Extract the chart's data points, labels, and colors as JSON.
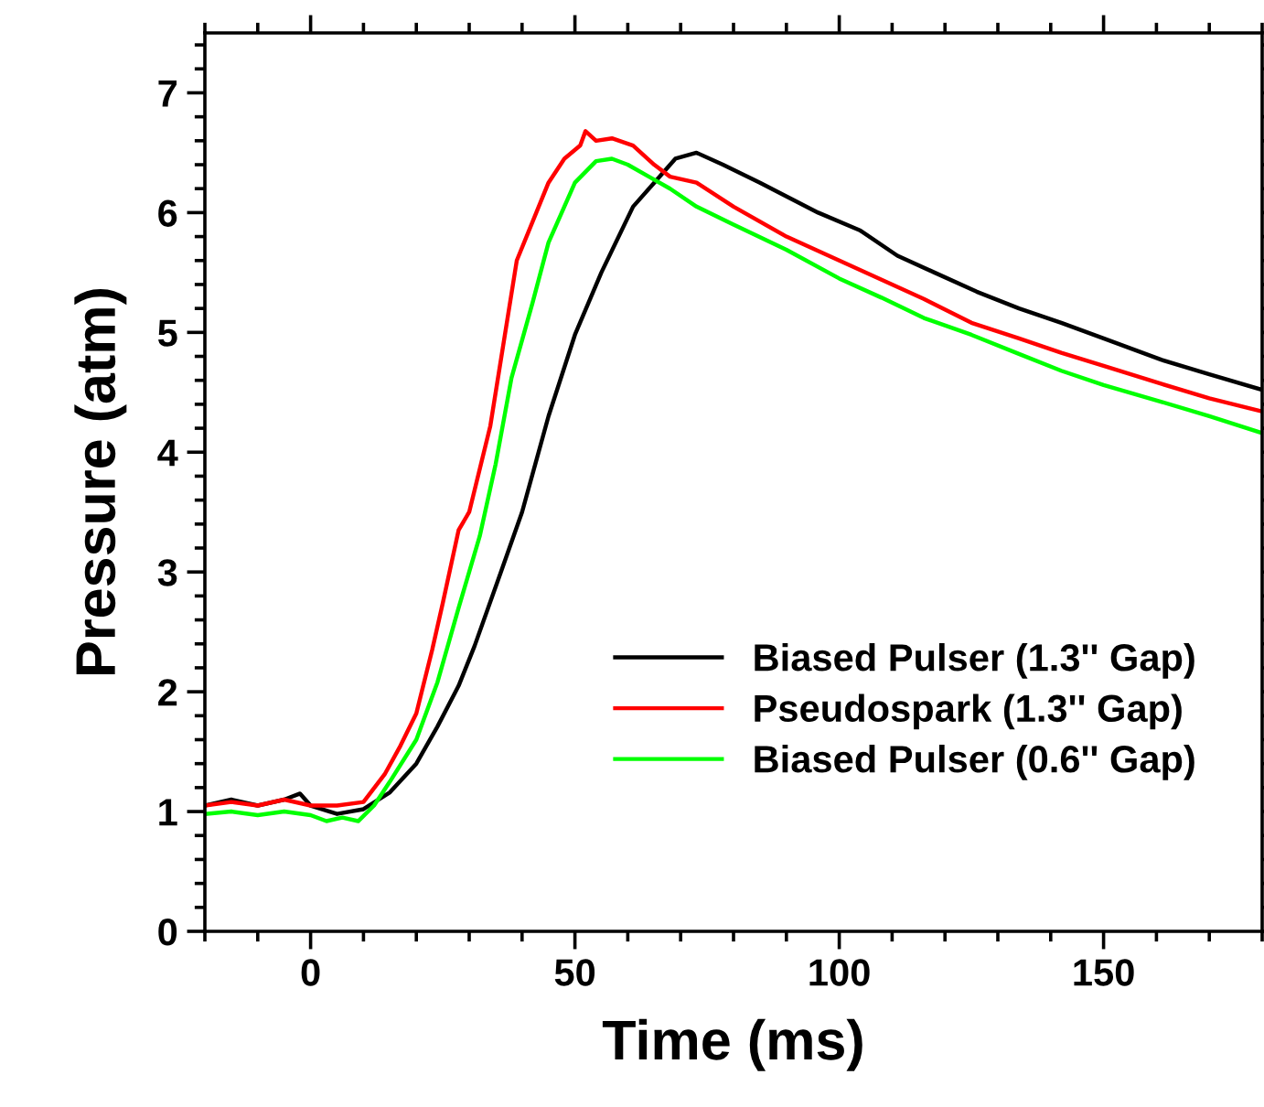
{
  "chart_data": {
    "type": "line",
    "xlabel": "Time (ms)",
    "ylabel": "Pressure (atm)",
    "xlim": [
      -20,
      180
    ],
    "xticks": [
      0,
      50,
      100,
      150
    ],
    "ylim": [
      0,
      7.5
    ],
    "yticks": [
      0,
      1,
      2,
      3,
      4,
      5,
      6,
      7
    ],
    "grid": false,
    "legend": "bottom right",
    "marker": "none",
    "line_style": "solid",
    "series": [
      {
        "name": "Biased Pulser (1.3'' Gap)",
        "color": "#000000",
        "x": [
          -20,
          -15,
          -10,
          -5,
          -2,
          0,
          5,
          10,
          15,
          20,
          24,
          28,
          31,
          36,
          40,
          45,
          50,
          55,
          61,
          65,
          69,
          73,
          78,
          85,
          96,
          104,
          111,
          118,
          126,
          134,
          142,
          150,
          161,
          170,
          180
        ],
        "values": [
          1.05,
          1.1,
          1.05,
          1.1,
          1.15,
          1.05,
          0.98,
          1.02,
          1.16,
          1.4,
          1.71,
          2.05,
          2.38,
          3.0,
          3.5,
          4.3,
          4.98,
          5.5,
          6.05,
          6.25,
          6.45,
          6.5,
          6.4,
          6.25,
          6.0,
          5.85,
          5.64,
          5.5,
          5.34,
          5.2,
          5.08,
          4.95,
          4.77,
          4.65,
          4.52
        ]
      },
      {
        "name": "Pseudospark (1.3'' Gap)",
        "color": "#ff0000",
        "x": [
          -20,
          -15,
          -10,
          -5,
          0,
          5,
          10,
          14,
          17,
          20,
          23,
          25,
          28,
          30,
          34,
          39,
          45,
          48,
          51,
          52,
          54,
          57,
          61,
          65,
          68,
          73,
          80,
          90,
          100,
          108,
          116,
          125,
          134,
          142,
          150,
          161,
          170,
          180
        ],
        "values": [
          1.05,
          1.08,
          1.05,
          1.1,
          1.05,
          1.05,
          1.08,
          1.31,
          1.55,
          1.82,
          2.35,
          2.74,
          3.35,
          3.5,
          4.22,
          5.6,
          6.25,
          6.45,
          6.56,
          6.68,
          6.6,
          6.62,
          6.56,
          6.4,
          6.3,
          6.25,
          6.05,
          5.8,
          5.6,
          5.44,
          5.28,
          5.08,
          4.95,
          4.83,
          4.72,
          4.57,
          4.45,
          4.34
        ]
      },
      {
        "name": "Biased Pulser (0.6'' Gap)",
        "color": "#00ff00",
        "x": [
          -20,
          -15,
          -10,
          -5,
          0,
          3,
          6,
          9,
          12,
          15,
          20,
          24,
          28,
          32,
          35,
          38,
          42,
          45,
          50,
          54,
          57,
          60,
          64,
          68,
          73,
          80,
          90,
          100,
          108,
          116,
          125,
          134,
          142,
          150,
          161,
          170,
          180
        ],
        "values": [
          0.98,
          1.0,
          0.97,
          1.0,
          0.97,
          0.92,
          0.95,
          0.92,
          1.05,
          1.25,
          1.6,
          2.08,
          2.7,
          3.3,
          3.9,
          4.62,
          5.25,
          5.75,
          6.25,
          6.43,
          6.45,
          6.4,
          6.3,
          6.2,
          6.05,
          5.9,
          5.69,
          5.45,
          5.29,
          5.12,
          4.98,
          4.82,
          4.68,
          4.56,
          4.42,
          4.3,
          4.16
        ]
      }
    ]
  }
}
